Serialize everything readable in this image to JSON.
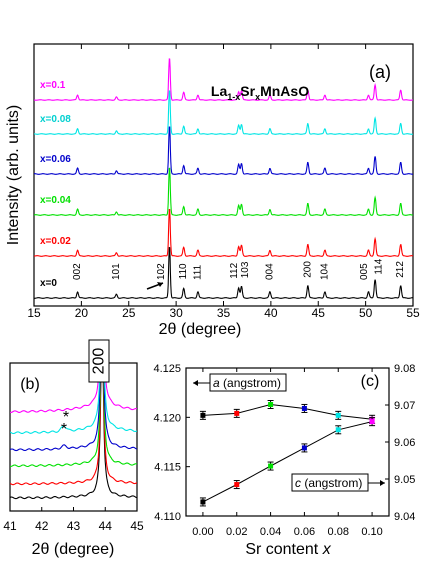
{
  "chart_data": [
    {
      "panel": "(a)",
      "type": "line",
      "title": "La1-xSrxMnAsO",
      "title_parts": {
        "a": "La",
        "b": "1-x",
        "c": "Sr",
        "d": "x",
        "e": "MnAsO"
      },
      "xlabel": "2θ (degree)",
      "ylabel": "Intensity (arb. units)",
      "xlim": [
        15,
        55
      ],
      "xticks": [
        "15",
        "20",
        "25",
        "30",
        "35",
        "40",
        "45",
        "50",
        "55"
      ],
      "series": [
        {
          "name": "x=0",
          "color": "#000000"
        },
        {
          "name": "x=0.02",
          "color": "#ff0000"
        },
        {
          "name": "x=0.04",
          "color": "#00e000"
        },
        {
          "name": "x=0.06",
          "color": "#0000cc"
        },
        {
          "name": "x=0.08",
          "color": "#00e5e5"
        },
        {
          "name": "x=0.1",
          "color": "#ff00ff"
        }
      ],
      "peaks": [
        {
          "hkl": "002",
          "x": 19.6,
          "h": 0.12
        },
        {
          "hkl": "101",
          "x": 23.7,
          "h": 0.07
        },
        {
          "hkl": "102",
          "x": 29.3,
          "h": 1.0
        },
        {
          "hkl": "110",
          "x": 30.8,
          "h": 0.18
        },
        {
          "hkl": "111",
          "x": 32.3,
          "h": 0.12
        },
        {
          "hkl": "112",
          "x": 36.6,
          "h": 0.2
        },
        {
          "hkl": "103",
          "x": 36.9,
          "h": 0.22
        },
        {
          "hkl": "004",
          "x": 39.9,
          "h": 0.12
        },
        {
          "hkl": "200",
          "x": 43.9,
          "h": 0.24
        },
        {
          "hkl": "104",
          "x": 45.7,
          "h": 0.12
        },
        {
          "hkl": "005",
          "x": 50.3,
          "h": 0.12
        },
        {
          "hkl": "114",
          "x": 51.0,
          "h": 0.36
        },
        {
          "hkl": "212",
          "x": 53.7,
          "h": 0.24
        }
      ],
      "peak_labels": [
        "002",
        "101",
        "102",
        "110",
        "111",
        "112",
        "103",
        "004",
        "200",
        "104",
        "005",
        "114",
        "212"
      ]
    },
    {
      "panel": "(b)",
      "type": "line",
      "xlabel": "2θ (degree)",
      "xlim": [
        41,
        45
      ],
      "xticks": [
        "41",
        "42",
        "43",
        "44",
        "45"
      ],
      "annotation": "200",
      "impurity_marks": [
        "*",
        "*"
      ],
      "peak_center": 43.9,
      "impurity_peak": 42.7
    },
    {
      "panel": "(c)",
      "type": "scatter",
      "xlabel": "Sr content x",
      "xlabel_parts": {
        "text": "Sr content ",
        "var": "x"
      },
      "x": [
        0.0,
        0.02,
        0.04,
        0.06,
        0.08,
        0.1
      ],
      "xticks": [
        "0.00",
        "0.02",
        "0.04",
        "0.06",
        "0.08",
        "0.10"
      ],
      "xlim": [
        -0.01,
        0.11
      ],
      "series": [
        {
          "name": "a (angstrom)",
          "axis": "left",
          "values": [
            4.1202,
            4.1204,
            4.1213,
            4.1209,
            4.1202,
            4.1198
          ]
        },
        {
          "name": "c (angstrom)",
          "axis": "right",
          "values": [
            9.0438,
            9.0485,
            9.0535,
            9.0584,
            9.0633,
            9.0655
          ]
        }
      ],
      "point_colors": [
        "#000000",
        "#ff0000",
        "#00e000",
        "#0000cc",
        "#00e5e5",
        "#ff00ff"
      ],
      "ylim_left": [
        4.11,
        4.125
      ],
      "yticks_left": [
        "4.110",
        "4.115",
        "4.120",
        "4.125"
      ],
      "ylim_right": [
        9.04,
        9.08
      ],
      "yticks_right": [
        "9.04",
        "9.05",
        "9.06",
        "9.07",
        "9.08"
      ],
      "label_a": {
        "var": "a",
        "unit": " (angstrom)"
      },
      "label_c": {
        "var": "c",
        "unit": " (angstrom)"
      }
    }
  ],
  "labels": {
    "a": "(a)",
    "b": "(b)",
    "c": "(c)"
  }
}
